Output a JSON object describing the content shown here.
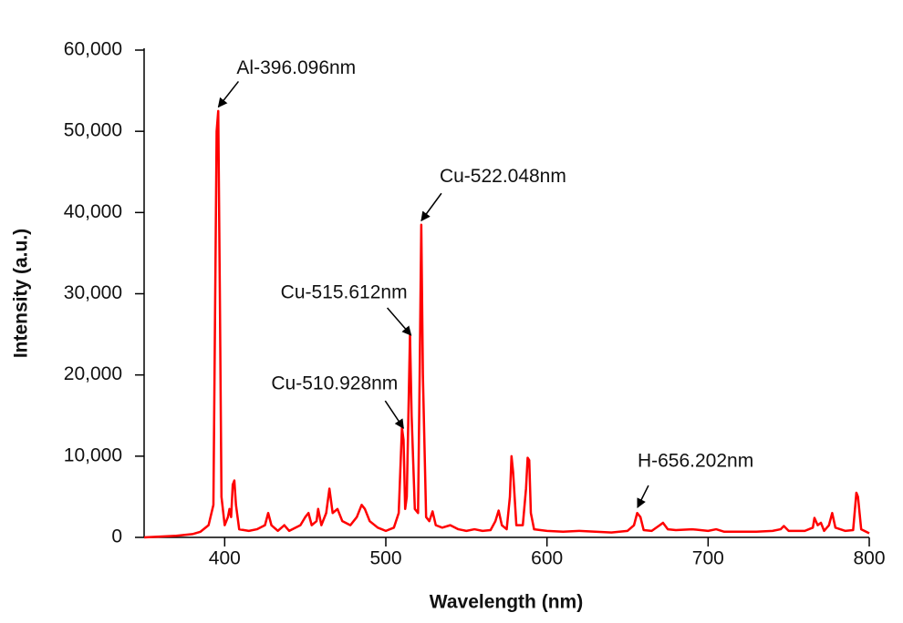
{
  "chart_data": {
    "type": "line",
    "x_label": "Wavelength (nm)",
    "y_label": "Intensity (a.u.)",
    "color": "#ff0000",
    "xlim": [
      350,
      800
    ],
    "ylim": [
      0,
      60000
    ],
    "xticks": [
      400,
      500,
      600,
      700,
      800
    ],
    "yticks": [
      {
        "value": 0,
        "label": "0"
      },
      {
        "value": 10000,
        "label": "10,000"
      },
      {
        "value": 20000,
        "label": "20,000"
      },
      {
        "value": 30000,
        "label": "30,000"
      },
      {
        "value": 40000,
        "label": "40,000"
      },
      {
        "value": 50000,
        "label": "50,000"
      },
      {
        "value": 60000,
        "label": "60,000"
      }
    ],
    "x": [
      350,
      360,
      370,
      380,
      385,
      390,
      393,
      395,
      396,
      397,
      398,
      400,
      402,
      403,
      404,
      405,
      406,
      407,
      409,
      415,
      420,
      425,
      427,
      429,
      433,
      437,
      440,
      447,
      450,
      452,
      454,
      457,
      458,
      460,
      463,
      465,
      467,
      470,
      473,
      478,
      482,
      485,
      487,
      490,
      495,
      500,
      505,
      508,
      510,
      511,
      512,
      513,
      515,
      516,
      518,
      520,
      521,
      522,
      523,
      525,
      527,
      529,
      531,
      535,
      540,
      545,
      550,
      555,
      560,
      565,
      568,
      570,
      572,
      575,
      577,
      578,
      579,
      581,
      585,
      587,
      588,
      589,
      590,
      592,
      600,
      610,
      620,
      630,
      640,
      650,
      654,
      656,
      658,
      660,
      665,
      670,
      672,
      675,
      680,
      690,
      700,
      705,
      710,
      720,
      730,
      740,
      745,
      747,
      750,
      760,
      765,
      766,
      768,
      770,
      772,
      775,
      777,
      779,
      785,
      790,
      792,
      793,
      795,
      800
    ],
    "values": [
      0,
      100,
      200,
      400,
      700,
      1500,
      4000,
      50000,
      52500,
      30000,
      5000,
      1500,
      2500,
      3500,
      2500,
      6500,
      7000,
      4000,
      1000,
      800,
      1000,
      1500,
      3000,
      1500,
      800,
      1500,
      800,
      1500,
      2500,
      3000,
      1500,
      2000,
      3500,
      1500,
      3000,
      6000,
      3000,
      3500,
      2000,
      1500,
      2500,
      4000,
      3500,
      2000,
      1200,
      800,
      1200,
      3000,
      13500,
      12000,
      3500,
      5000,
      25000,
      15000,
      3500,
      3000,
      20000,
      38500,
      20000,
      2500,
      2000,
      3200,
      1500,
      1200,
      1500,
      1000,
      800,
      1000,
      800,
      900,
      2000,
      3300,
      1500,
      1000,
      5000,
      10000,
      8000,
      1500,
      1500,
      6000,
      9800,
      9500,
      3000,
      1000,
      800,
      700,
      800,
      700,
      600,
      800,
      1500,
      3000,
      2500,
      900,
      800,
      1500,
      1800,
      1000,
      900,
      1000,
      800,
      1000,
      700,
      700,
      700,
      800,
      1000,
      1400,
      800,
      800,
      1200,
      2400,
      1500,
      1800,
      800,
      1500,
      3000,
      1200,
      800,
      900,
      5500,
      5000,
      1000,
      500
    ],
    "annotations": [
      {
        "text": "Al-396.096nm",
        "x": 396.096,
        "y": 53000
      },
      {
        "text": "Cu-522.048nm",
        "x": 522.048,
        "y": 39000
      },
      {
        "text": "Cu-515.612nm",
        "x": 515.612,
        "y": 24900
      },
      {
        "text": "Cu-510.928nm",
        "x": 510.928,
        "y": 13450
      },
      {
        "text": "H-656.202nm",
        "x": 656.202,
        "y": 3700
      }
    ]
  }
}
